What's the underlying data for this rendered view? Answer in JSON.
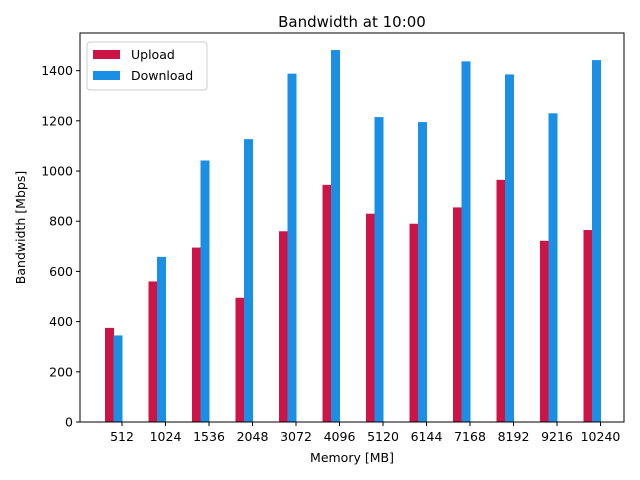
{
  "chart_data": {
    "type": "bar",
    "title": "Bandwidth at 10:00",
    "xlabel": "Memory [MB]",
    "ylabel": "Bandwidth [Mbps]",
    "categories": [
      "512",
      "1024",
      "1536",
      "2048",
      "3072",
      "4096",
      "5120",
      "6144",
      "7168",
      "8192",
      "9216",
      "10240"
    ],
    "series": [
      {
        "name": "Upload",
        "color": "#cc1447",
        "values": [
          375,
          560,
          695,
          495,
          760,
          945,
          830,
          790,
          855,
          965,
          722,
          765
        ]
      },
      {
        "name": "Download",
        "color": "#1a8fe3",
        "values": [
          345,
          658,
          1042,
          1127,
          1388,
          1482,
          1215,
          1195,
          1437,
          1385,
          1230,
          1442
        ]
      }
    ],
    "ylim": [
      0,
      1550
    ],
    "yticks": [
      0,
      200,
      400,
      600,
      800,
      1000,
      1200,
      1400
    ],
    "grid": false,
    "legend_position": "top-left"
  }
}
